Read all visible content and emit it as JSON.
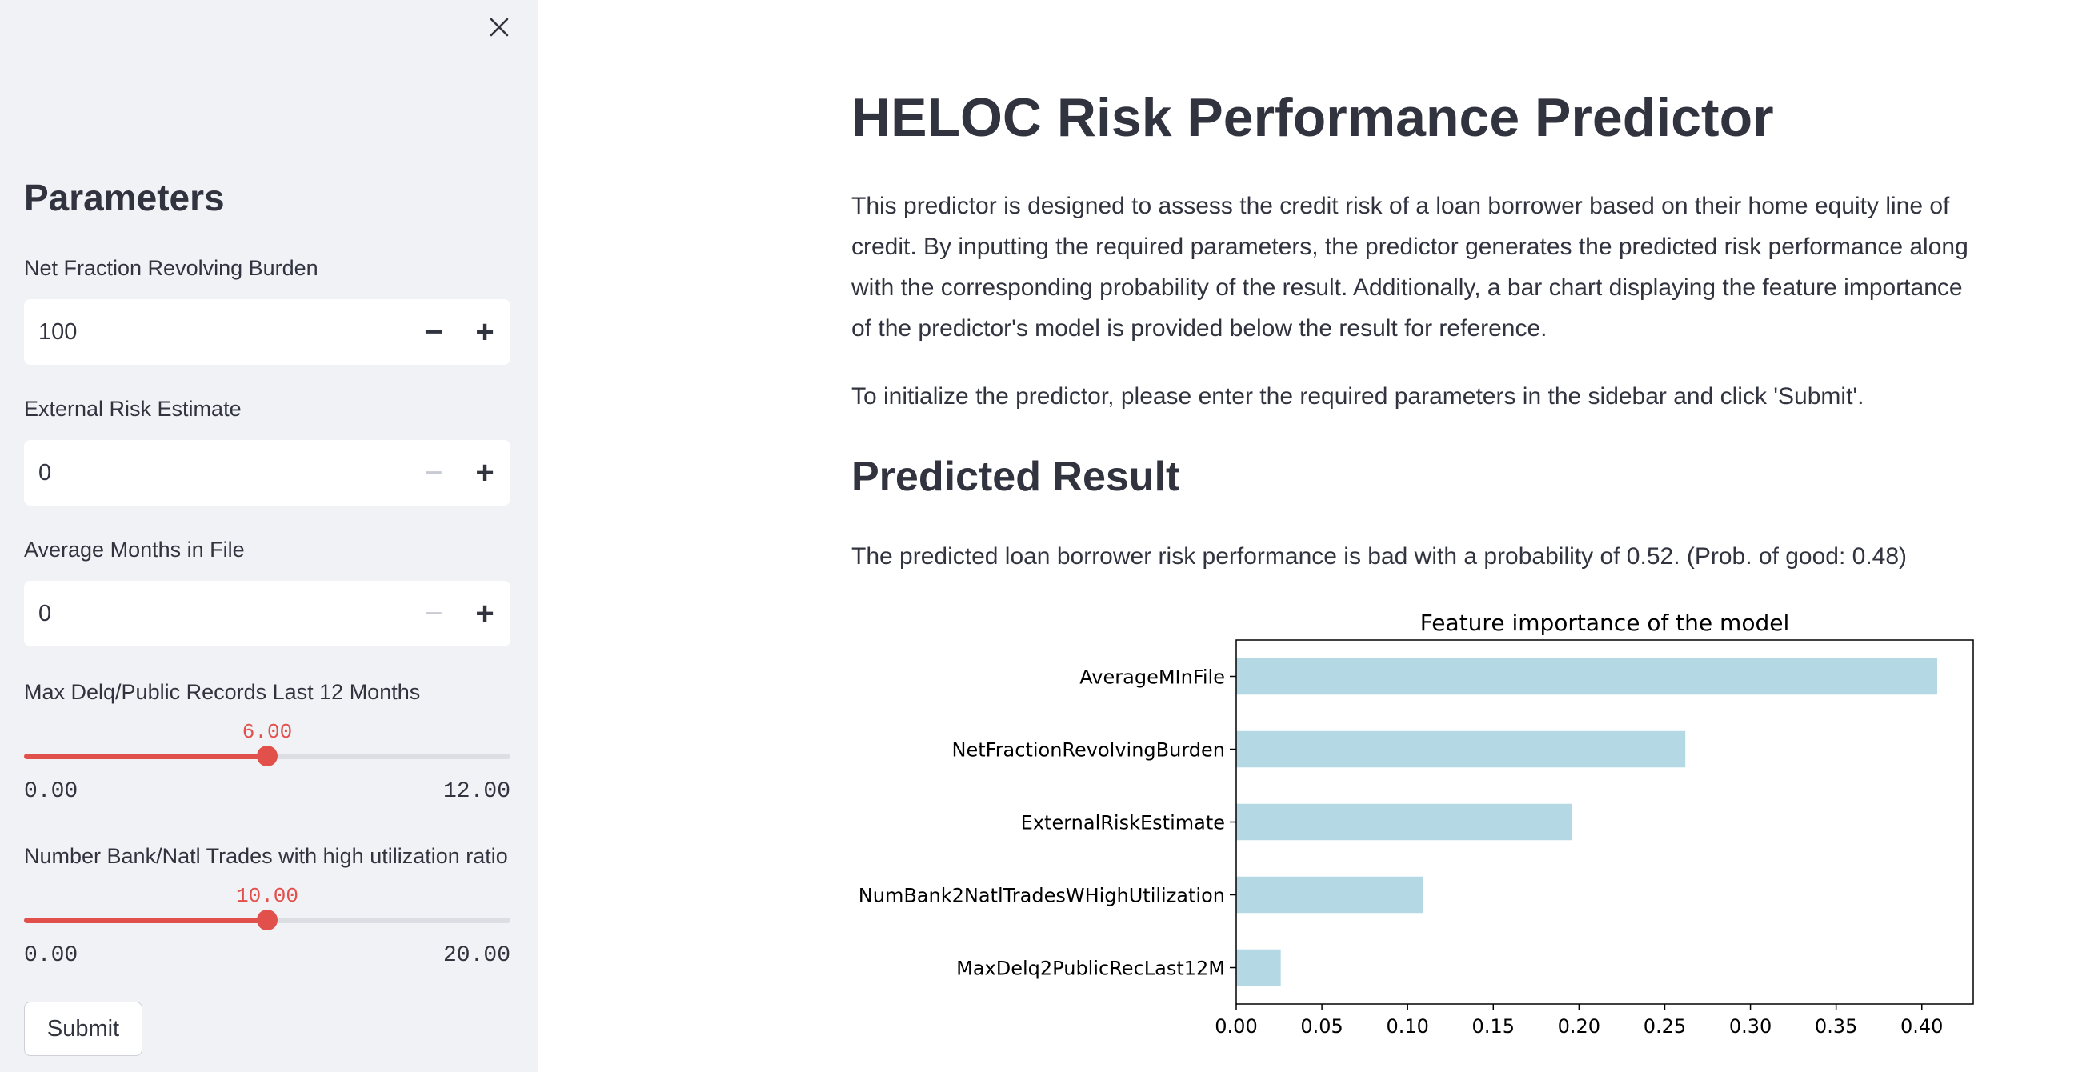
{
  "sidebar": {
    "title": "Parameters",
    "close_icon": "close-icon",
    "fields": [
      {
        "label": "Net Fraction Revolving Burden",
        "value": "100",
        "minus_disabled": false
      },
      {
        "label": "External Risk Estimate",
        "value": "0",
        "minus_disabled": true
      },
      {
        "label": "Average Months in File",
        "value": "0",
        "minus_disabled": true
      }
    ],
    "sliders": [
      {
        "label": "Max Delq/Public Records Last 12 Months",
        "value": "6.00",
        "min": "0.00",
        "max": "12.00",
        "fraction": 0.5
      },
      {
        "label": "Number Bank/Natl Trades with high utilization ratio",
        "value": "10.00",
        "min": "0.00",
        "max": "20.00",
        "fraction": 0.5
      }
    ],
    "minus_symbol": "−",
    "plus_symbol": "+",
    "submit_label": "Submit"
  },
  "main": {
    "title": "HELOC Risk Performance Predictor",
    "description": "This predictor is designed to assess the credit risk of a loan borrower based on their home equity line of credit. By inputting the required parameters, the predictor generates the predicted risk performance along with the corresponding probability of the result. Additionally, a bar chart displaying the feature importance of the predictor's model is provided below the result for reference.",
    "instructions": "To initialize the predictor, please enter the required parameters in the sidebar and click 'Submit'.",
    "result_heading": "Predicted Result",
    "result_text": "The predicted loan borrower risk performance is bad with a probability of 0.52. (Prob. of good: 0.48)"
  },
  "chart_data": {
    "type": "bar",
    "orientation": "horizontal",
    "title": "Feature importance of the model",
    "xlabel": "",
    "ylabel": "",
    "categories": [
      "AverageMInFile",
      "NetFractionRevolvingBurden",
      "ExternalRiskEstimate",
      "NumBank2NatlTradesWHighUtilization",
      "MaxDelq2PublicRecLast12M"
    ],
    "values": [
      0.409,
      0.262,
      0.196,
      0.109,
      0.026
    ],
    "xlim": [
      0,
      0.43
    ],
    "xticks": [
      "0.00",
      "0.05",
      "0.10",
      "0.15",
      "0.20",
      "0.25",
      "0.30",
      "0.35",
      "0.40"
    ],
    "grid": false,
    "color": "#b5d8e5"
  }
}
